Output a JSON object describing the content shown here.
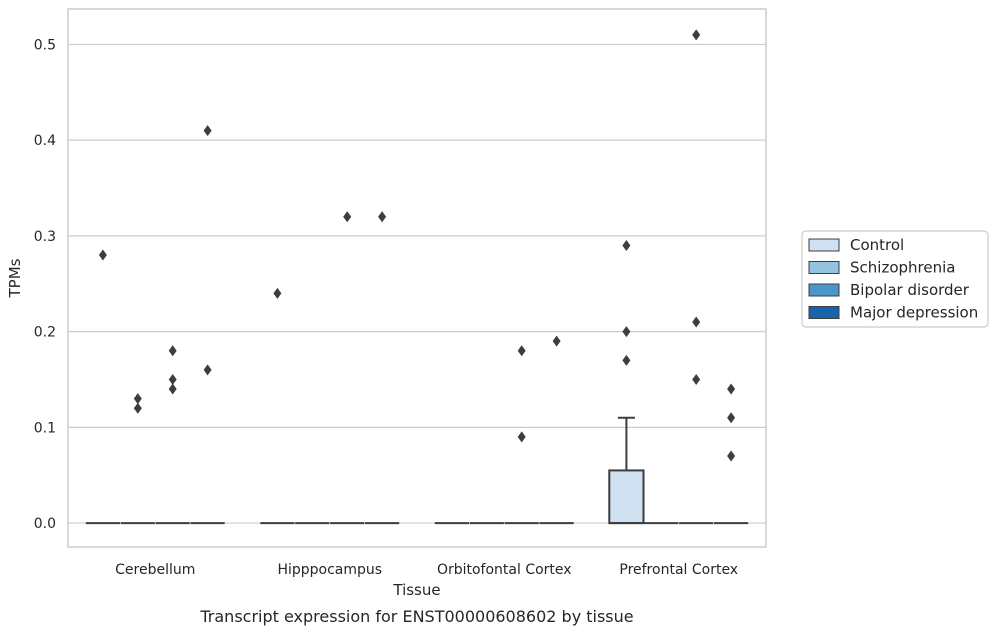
{
  "chart_data": {
    "type": "box",
    "title": "",
    "caption": "Transcript expression for ENST00000608602 by tissue",
    "xlabel": "Tissue",
    "ylabel": "TPMs",
    "ylim": [
      -0.025,
      0.537
    ],
    "yticks": [
      0.0,
      0.1,
      0.2,
      0.3,
      0.4,
      0.5
    ],
    "ytick_labels": [
      "0.0",
      "0.1",
      "0.2",
      "0.3",
      "0.4",
      "0.5"
    ],
    "grid": "horizontal",
    "legend_position": "right",
    "categories": [
      "Cerebellum",
      "Hipppocampus",
      "Orbitofontal Cortex",
      "Prefrontal Cortex"
    ],
    "series": [
      {
        "name": "Control",
        "color": "#d0e1f2",
        "boxes": [
          {
            "q1": 0,
            "median": 0,
            "q3": 0,
            "whisker_low": 0,
            "whisker_high": 0,
            "outliers": [
              0.28
            ]
          },
          {
            "q1": 0,
            "median": 0,
            "q3": 0,
            "whisker_low": 0,
            "whisker_high": 0,
            "outliers": [
              0.24
            ]
          },
          {
            "q1": 0,
            "median": 0,
            "q3": 0,
            "whisker_low": 0,
            "whisker_high": 0,
            "outliers": []
          },
          {
            "q1": 0,
            "median": 0,
            "q3": 0.055,
            "whisker_low": 0,
            "whisker_high": 0.11,
            "outliers": [
              0.29,
              0.2,
              0.17
            ]
          }
        ]
      },
      {
        "name": "Schizophrenia",
        "color": "#94c4df",
        "boxes": [
          {
            "q1": 0,
            "median": 0,
            "q3": 0,
            "whisker_low": 0,
            "whisker_high": 0,
            "outliers": [
              0.13,
              0.12
            ]
          },
          {
            "q1": 0,
            "median": 0,
            "q3": 0,
            "whisker_low": 0,
            "whisker_high": 0,
            "outliers": []
          },
          {
            "q1": 0,
            "median": 0,
            "q3": 0,
            "whisker_low": 0,
            "whisker_high": 0,
            "outliers": []
          },
          {
            "q1": 0,
            "median": 0,
            "q3": 0,
            "whisker_low": 0,
            "whisker_high": 0,
            "outliers": []
          }
        ]
      },
      {
        "name": "Bipolar disorder",
        "color": "#4a98c9",
        "boxes": [
          {
            "q1": 0,
            "median": 0,
            "q3": 0,
            "whisker_low": 0,
            "whisker_high": 0,
            "outliers": [
              0.18,
              0.15,
              0.14
            ]
          },
          {
            "q1": 0,
            "median": 0,
            "q3": 0,
            "whisker_low": 0,
            "whisker_high": 0,
            "outliers": [
              0.32
            ]
          },
          {
            "q1": 0,
            "median": 0,
            "q3": 0,
            "whisker_low": 0,
            "whisker_high": 0,
            "outliers": [
              0.18,
              0.09
            ]
          },
          {
            "q1": 0,
            "median": 0,
            "q3": 0,
            "whisker_low": 0,
            "whisker_high": 0,
            "outliers": [
              0.51,
              0.21,
              0.15
            ]
          }
        ]
      },
      {
        "name": "Major depression",
        "color": "#1764ab",
        "boxes": [
          {
            "q1": 0,
            "median": 0,
            "q3": 0,
            "whisker_low": 0,
            "whisker_high": 0,
            "outliers": [
              0.41,
              0.16
            ]
          },
          {
            "q1": 0,
            "median": 0,
            "q3": 0,
            "whisker_low": 0,
            "whisker_high": 0,
            "outliers": [
              0.32
            ]
          },
          {
            "q1": 0,
            "median": 0,
            "q3": 0,
            "whisker_low": 0,
            "whisker_high": 0,
            "outliers": [
              0.19
            ]
          },
          {
            "q1": 0,
            "median": 0,
            "q3": 0,
            "whisker_low": 0,
            "whisker_high": 0,
            "outliers": [
              0.11,
              0.07,
              0.14
            ]
          }
        ]
      }
    ]
  }
}
